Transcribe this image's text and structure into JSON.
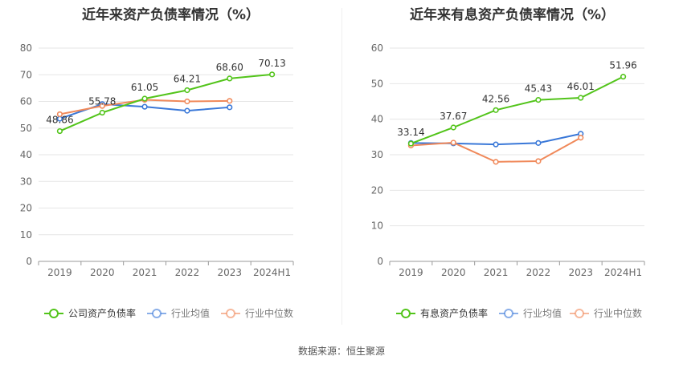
{
  "source_label": "数据来源：恒生聚源",
  "chart_data": [
    {
      "type": "line",
      "title": "近年来资产负债率情况（%）",
      "categories": [
        "2019",
        "2020",
        "2021",
        "2022",
        "2023",
        "2024H1"
      ],
      "ylim": [
        0,
        80
      ],
      "yticks": [
        0,
        10,
        20,
        30,
        40,
        50,
        60,
        70,
        80
      ],
      "grid": true,
      "legend_position": "bottom",
      "series": [
        {
          "name": "公司资产负债率",
          "color": "#52c41a",
          "values": [
            48.86,
            55.78,
            61.05,
            64.21,
            68.6,
            70.13
          ],
          "labels": [
            "48.86",
            "55.78",
            "61.05",
            "64.21",
            "68.60",
            "70.13"
          ]
        },
        {
          "name": "行业均值",
          "color": "#3a78d8",
          "values": [
            53.5,
            59.0,
            58.0,
            56.5,
            57.8,
            null
          ]
        },
        {
          "name": "行业中位数",
          "color": "#f0895a",
          "values": [
            55.2,
            58.3,
            60.6,
            60.0,
            60.2,
            null
          ]
        }
      ]
    },
    {
      "type": "line",
      "title": "近年来有息资产负债率情况（%）",
      "categories": [
        "2019",
        "2020",
        "2021",
        "2022",
        "2023",
        "2024H1"
      ],
      "ylim": [
        0,
        60
      ],
      "yticks": [
        0,
        10,
        20,
        30,
        40,
        50,
        60
      ],
      "grid": true,
      "legend_position": "bottom",
      "series": [
        {
          "name": "有息资产负债率",
          "color": "#52c41a",
          "values": [
            33.14,
            37.67,
            42.56,
            45.43,
            46.01,
            51.96
          ],
          "labels": [
            "33.14",
            "37.67",
            "42.56",
            "45.43",
            "46.01",
            "51.96"
          ]
        },
        {
          "name": "行业均值",
          "color": "#3a78d8",
          "values": [
            33.3,
            33.2,
            32.9,
            33.3,
            35.9,
            null
          ]
        },
        {
          "name": "行业中位数",
          "color": "#f0895a",
          "values": [
            32.6,
            33.4,
            28.0,
            28.2,
            34.8,
            null
          ]
        }
      ]
    }
  ]
}
